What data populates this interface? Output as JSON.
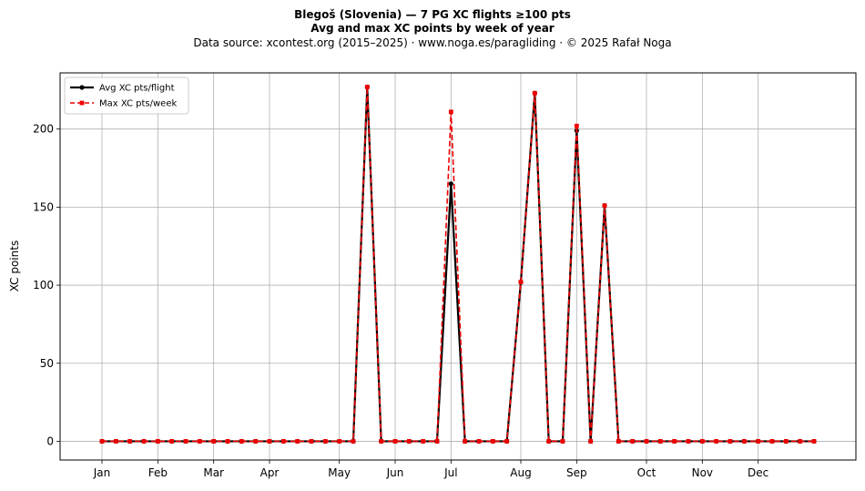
{
  "header": {
    "title_line1": "Blegoš (Slovenia)  —  7 PG XC flights ≥100 pts",
    "title_line2": "Avg and max XC points by week of year",
    "subtitle": "Data source: xcontest.org (2015–2025)  ·  www.noga.es/paragliding  ·  © 2025 Rafał Noga"
  },
  "chart_data": {
    "type": "line",
    "title": "Blegoš (Slovenia)  —  7 PG XC flights ≥100 pts",
    "subtitle": "Avg and max XC points by week of year",
    "xlabel": "",
    "ylabel": "XC points",
    "x": [
      1,
      2,
      3,
      4,
      5,
      6,
      7,
      8,
      9,
      10,
      11,
      12,
      13,
      14,
      15,
      16,
      17,
      18,
      19,
      20,
      21,
      22,
      23,
      24,
      25,
      26,
      27,
      28,
      29,
      30,
      31,
      32,
      33,
      34,
      35,
      36,
      37,
      38,
      39,
      40,
      41,
      42,
      43,
      44,
      45,
      46,
      47,
      48,
      49,
      50,
      51,
      52
    ],
    "xlim": [
      -2,
      55
    ],
    "ylim": [
      -12,
      236
    ],
    "x_ticks": [
      {
        "label": "Jan",
        "week": 1
      },
      {
        "label": "Feb",
        "week": 5
      },
      {
        "label": "Mar",
        "week": 9
      },
      {
        "label": "Apr",
        "week": 13
      },
      {
        "label": "May",
        "week": 18
      },
      {
        "label": "Jun",
        "week": 22
      },
      {
        "label": "Jul",
        "week": 26
      },
      {
        "label": "Aug",
        "week": 31
      },
      {
        "label": "Sep",
        "week": 35
      },
      {
        "label": "Oct",
        "week": 40
      },
      {
        "label": "Nov",
        "week": 44
      },
      {
        "label": "Dec",
        "week": 48
      }
    ],
    "y_ticks": [
      0,
      50,
      100,
      150,
      200
    ],
    "grid": true,
    "legend_position": "top-left",
    "series": [
      {
        "name": "Avg XC pts/flight",
        "color": "#000000",
        "style": "solid",
        "marker": "circle",
        "values": [
          0,
          0,
          0,
          0,
          0,
          0,
          0,
          0,
          0,
          0,
          0,
          0,
          0,
          0,
          0,
          0,
          0,
          0,
          0,
          227,
          0,
          0,
          0,
          0,
          0,
          165,
          0,
          0,
          0,
          0,
          102,
          223,
          0,
          0,
          199,
          0,
          151,
          0,
          0,
          0,
          0,
          0,
          0,
          0,
          0,
          0,
          0,
          0,
          0,
          0,
          0,
          0
        ]
      },
      {
        "name": "Max XC pts/week",
        "color": "#ee0000",
        "style": "dashed",
        "marker": "square",
        "values": [
          0,
          0,
          0,
          0,
          0,
          0,
          0,
          0,
          0,
          0,
          0,
          0,
          0,
          0,
          0,
          0,
          0,
          0,
          0,
          227,
          0,
          0,
          0,
          0,
          0,
          211,
          0,
          0,
          0,
          0,
          102,
          223,
          0,
          0,
          202,
          0,
          151,
          0,
          0,
          0,
          0,
          0,
          0,
          0,
          0,
          0,
          0,
          0,
          0,
          0,
          0,
          0
        ]
      }
    ]
  }
}
